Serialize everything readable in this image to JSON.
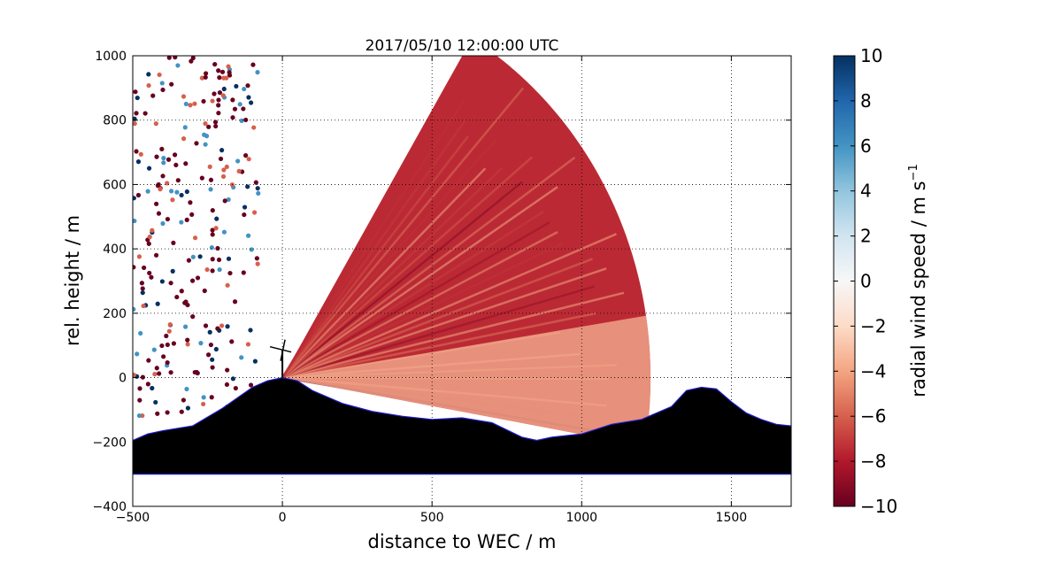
{
  "chart_data": {
    "type": "heatmap",
    "title": "2017/05/10 12:00:00 UTC",
    "xlabel": "distance to WEC / m",
    "ylabel": "rel. height / m",
    "xlim": [
      -500,
      1700
    ],
    "ylim": [
      -400,
      1000
    ],
    "xticks": [
      -500,
      0,
      500,
      1000,
      1500
    ],
    "yticks": [
      -400,
      -200,
      0,
      200,
      400,
      600,
      800,
      1000
    ],
    "grid": true,
    "colorbar": {
      "label": "radial wind speed / m s",
      "label_superscript": "−1",
      "range": [
        -10,
        10
      ],
      "ticks": [
        -10,
        -8,
        -6,
        -4,
        -2,
        0,
        2,
        4,
        6,
        8,
        10
      ],
      "colormap": "RdBu",
      "stops": [
        "#67001f",
        "#b2182b",
        "#d6604d",
        "#f4a582",
        "#fddbc7",
        "#f7f7f7",
        "#d1e5f0",
        "#92c5de",
        "#4393c3",
        "#2166ac",
        "#053061"
      ]
    },
    "scan": {
      "origin": [
        0,
        0
      ],
      "range_max_m": 1230,
      "elevation_min_deg": 0,
      "elevation_max_deg": 59,
      "dominant_value": -7.5
    },
    "terrain": {
      "x": [
        -500,
        -450,
        -400,
        -300,
        -200,
        -100,
        -50,
        0,
        50,
        100,
        200,
        300,
        400,
        500,
        600,
        700,
        800,
        850,
        900,
        1000,
        1100,
        1200,
        1300,
        1350,
        1400,
        1450,
        1500,
        1550,
        1600,
        1650,
        1700
      ],
      "y": [
        -195,
        -175,
        -165,
        -150,
        -95,
        -30,
        -10,
        0,
        -10,
        -40,
        -80,
        -105,
        -120,
        -130,
        -125,
        -140,
        -185,
        -195,
        -185,
        -175,
        -145,
        -130,
        -90,
        -40,
        -30,
        -35,
        -75,
        -110,
        -130,
        -145,
        -150
      ],
      "base": -300,
      "fill": "#000000",
      "outline": "#1f1fd0"
    },
    "turbine": {
      "x": 0,
      "hub_height": 85
    }
  }
}
